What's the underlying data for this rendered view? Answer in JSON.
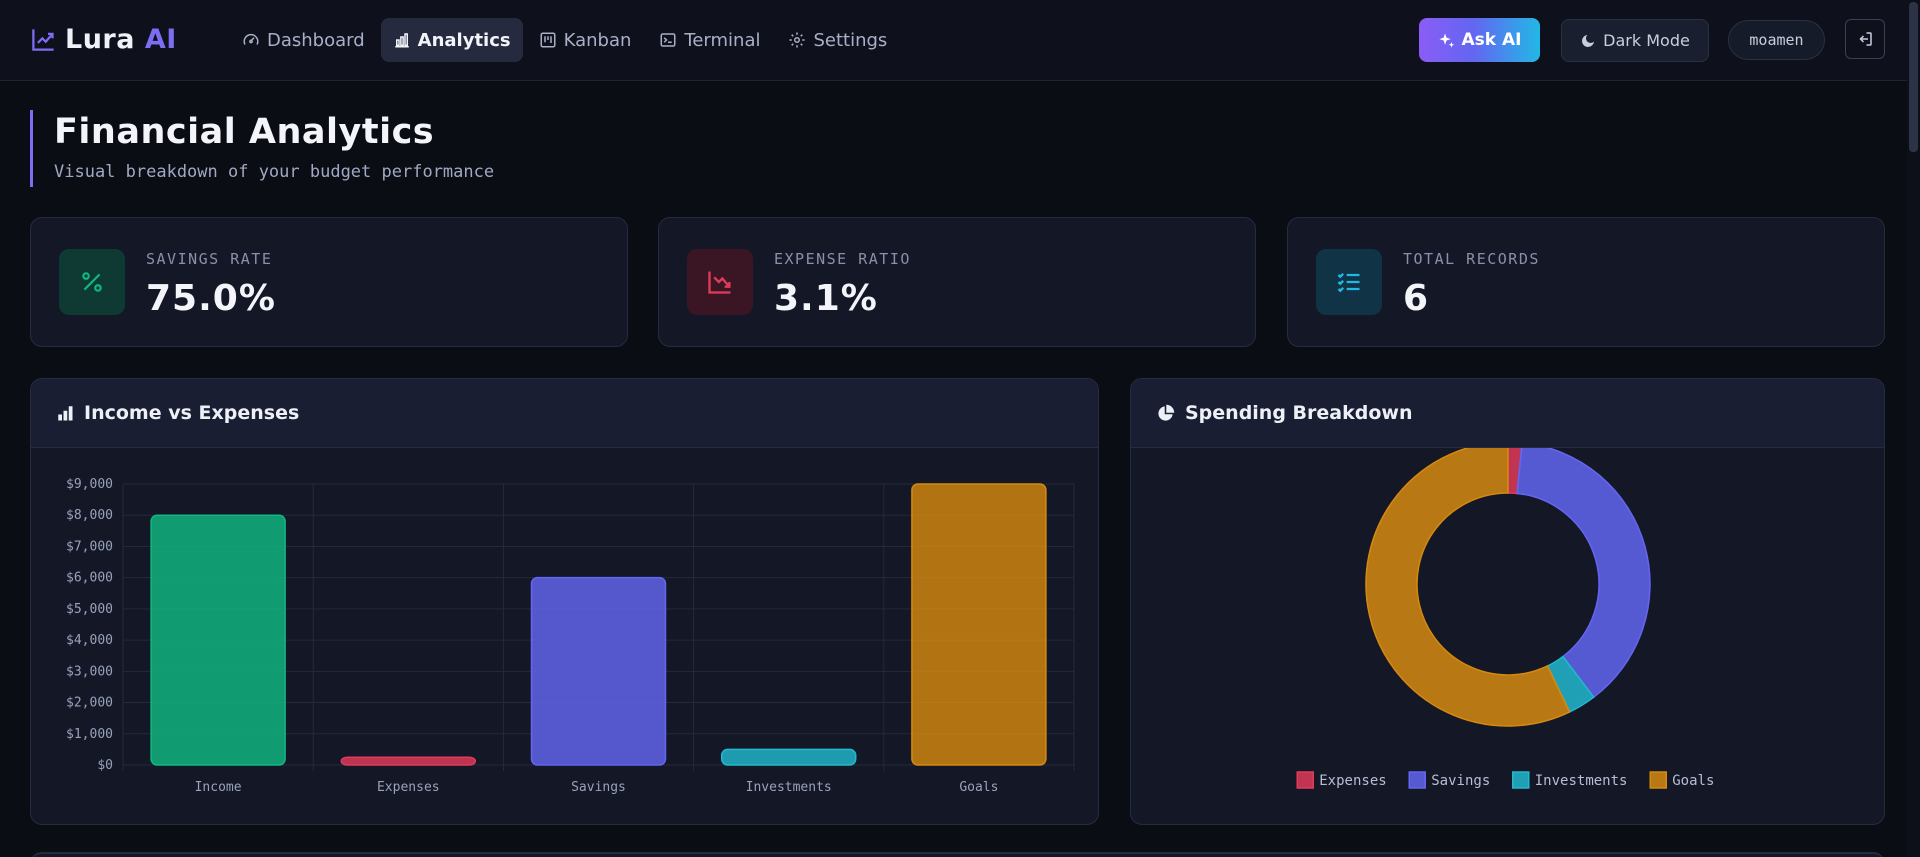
{
  "brand": {
    "name": "Lura",
    "accent": "AI"
  },
  "nav": {
    "items": [
      {
        "label": "Dashboard",
        "icon": "gauge-icon",
        "active": false
      },
      {
        "label": "Analytics",
        "icon": "bar-chart-icon",
        "active": true
      },
      {
        "label": "Kanban",
        "icon": "kanban-icon",
        "active": false
      },
      {
        "label": "Terminal",
        "icon": "terminal-icon",
        "active": false
      },
      {
        "label": "Settings",
        "icon": "gear-icon",
        "active": false
      }
    ],
    "ask_ai_label": "Ask AI",
    "dark_mode_label": "Dark Mode",
    "username": "moamen"
  },
  "header": {
    "title": "Financial Analytics",
    "subtitle": "Visual breakdown of your budget performance"
  },
  "stats": [
    {
      "label": "SAVINGS RATE",
      "value": "75.0%",
      "icon": "percent-icon",
      "color": "#10b981"
    },
    {
      "label": "EXPENSE RATIO",
      "value": "3.1%",
      "icon": "trending-down-icon",
      "color": "#e23b5a"
    },
    {
      "label": "TOTAL RECORDS",
      "value": "6",
      "icon": "list-check-icon",
      "color": "#22b8e6"
    }
  ],
  "panels": {
    "bar_title": "Income vs Expenses",
    "donut_title": "Spending Breakdown"
  },
  "colors": {
    "income": "#10b981",
    "expenses": "#e23b5a",
    "savings": "#6366f1",
    "investments": "#22b8cf",
    "goals": "#d68910",
    "accent": "#7c6df4"
  },
  "chart_data": [
    {
      "type": "bar",
      "title": "Income vs Expenses",
      "categories": [
        "Income",
        "Expenses",
        "Savings",
        "Investments",
        "Goals"
      ],
      "values": [
        8000,
        250,
        6000,
        500,
        9000
      ],
      "ylim": [
        0,
        9000
      ],
      "yticks": [
        "$0",
        "$1,000",
        "$2,000",
        "$3,000",
        "$4,000",
        "$5,000",
        "$6,000",
        "$7,000",
        "$8,000",
        "$9,000"
      ],
      "grid": true
    },
    {
      "type": "pie",
      "title": "Spending Breakdown",
      "labels": [
        "Expenses",
        "Savings",
        "Investments",
        "Goals"
      ],
      "values": [
        250,
        6000,
        500,
        9000
      ],
      "legend": "bottom"
    }
  ]
}
